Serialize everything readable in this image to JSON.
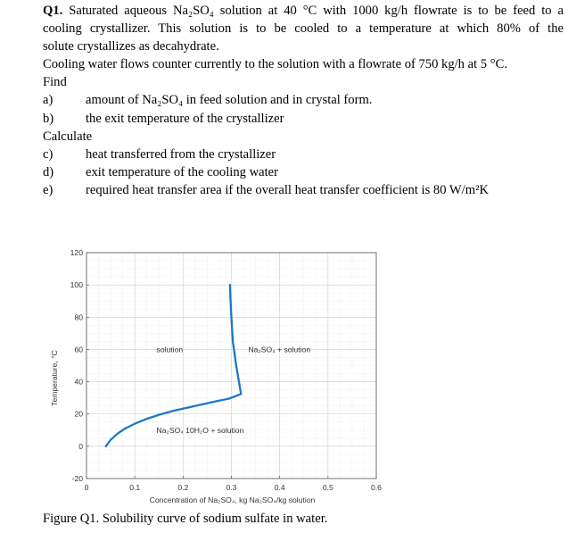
{
  "question": {
    "heading": "Q1.",
    "intro": [
      "Saturated aqueous Na₂SO₄ solution at 40 °C with 1000 kg/h flowrate is to be feed to a",
      "cooling crystallizer. This solution is to be cooled to a temperature at which 80% of the",
      "solute crystallizes as decahydrate.",
      "Cooling water flows counter currently to the solution with a flowrate of 750 kg/h at 5 °C."
    ],
    "find_label": "Find",
    "find_items": [
      {
        "label": "a)",
        "text": "amount of Na₂SO₄ in feed solution and in crystal form."
      },
      {
        "label": "b)",
        "text": "the exit temperature of the crystallizer"
      }
    ],
    "calculate_label": "Calculate",
    "calculate_items": [
      {
        "label": "c)",
        "text": "heat transferred from the crystallizer"
      },
      {
        "label": "d)",
        "text": "exit temperature of the cooling water"
      },
      {
        "label": "e)",
        "text": "required heat transfer area if the overall heat transfer coefficient is 80 W/m²K"
      }
    ]
  },
  "chart_data": {
    "type": "line",
    "xlabel": "Concentration of Na₂SO₄, kg Na₂SO₄/kg solution",
    "ylabel": "Temperature, °C",
    "xlim": [
      0,
      0.6
    ],
    "ylim": [
      -20,
      120
    ],
    "x_ticks": [
      "0",
      "0.1",
      "0.2",
      "0.3",
      "0.4",
      "0.5",
      "0.6"
    ],
    "y_ticks": [
      "120",
      "100",
      "80",
      "60",
      "40",
      "20",
      "0",
      "-20"
    ],
    "grid": true,
    "line_color": "#1f77c4",
    "series": [
      {
        "x": [
          0.04,
          0.05,
          0.065,
          0.08,
          0.1,
          0.125,
          0.15,
          0.18,
          0.21,
          0.24,
          0.27,
          0.295,
          0.32,
          0.31,
          0.303,
          0.3,
          0.298,
          0.297
        ],
        "y": [
          0,
          4,
          8,
          11,
          14,
          17,
          19.5,
          22,
          24,
          26,
          28,
          29.5,
          32.4,
          50,
          65,
          80,
          92,
          100
        ]
      }
    ],
    "annotations": [
      {
        "text": "solution",
        "x": 0.145,
        "y": 60
      },
      {
        "text": "Na₂SO₄ + solution",
        "x": 0.335,
        "y": 60
      },
      {
        "text": "Na₂SO₄ 10H₂O + solution",
        "x": 0.145,
        "y": 10
      }
    ]
  },
  "caption": "Figure Q1. Solubility curve of sodium sulfate in water."
}
